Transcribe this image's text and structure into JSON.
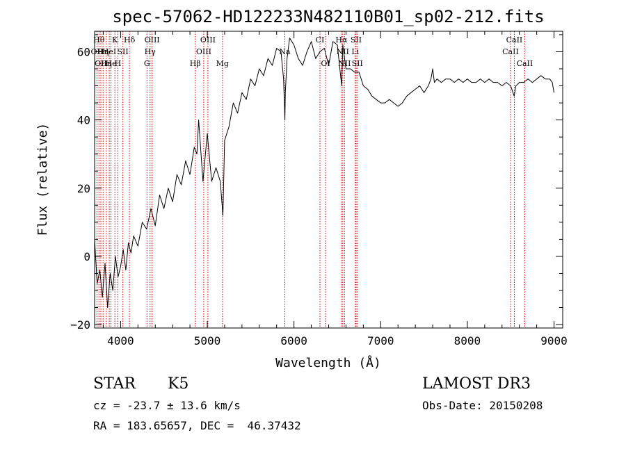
{
  "chart_data": {
    "type": "line",
    "title": "spec-57062-HD122233N482110B01_sp02-212.fits",
    "xlabel": "Wavelength (Å)",
    "ylabel": "Flux (relative)",
    "xlim": [
      3700,
      9100
    ],
    "ylim": [
      -21,
      66
    ],
    "xticks": [
      4000,
      5000,
      6000,
      7000,
      8000,
      9000
    ],
    "yticks": [
      -20,
      0,
      20,
      40,
      60
    ],
    "grid": false,
    "series": [
      {
        "x": [
          3700,
          3730,
          3760,
          3790,
          3820,
          3850,
          3880,
          3910,
          3940,
          3970,
          4000,
          4030,
          4060,
          4090,
          4120,
          4150,
          4200,
          4250,
          4300,
          4350,
          4400,
          4450,
          4500,
          4550,
          4600,
          4650,
          4700,
          4750,
          4800,
          4850,
          4880,
          4900,
          4950,
          5000,
          5050,
          5100,
          5150,
          5180,
          5200,
          5250,
          5300,
          5350,
          5400,
          5450,
          5500,
          5550,
          5600,
          5650,
          5700,
          5750,
          5800,
          5850,
          5880,
          5895,
          5900,
          5920,
          5950,
          6000,
          6050,
          6100,
          6150,
          6200,
          6250,
          6300,
          6350,
          6400,
          6450,
          6500,
          6550,
          6563,
          6600,
          6650,
          6700,
          6750,
          6800,
          6850,
          6900,
          6950,
          7000,
          7050,
          7100,
          7150,
          7200,
          7250,
          7300,
          7350,
          7400,
          7450,
          7500,
          7550,
          7580,
          7600,
          7620,
          7650,
          7700,
          7750,
          7800,
          7850,
          7900,
          7950,
          8000,
          8050,
          8100,
          8150,
          8200,
          8250,
          8300,
          8350,
          8400,
          8450,
          8500,
          8540,
          8560,
          8600,
          8650,
          8700,
          8750,
          8800,
          8850,
          8900,
          8950,
          8980,
          9000
        ],
        "y": [
          5,
          -8,
          -4,
          -12,
          -2,
          -15,
          -5,
          -10,
          0,
          -6,
          -3,
          2,
          -4,
          4,
          1,
          6,
          3,
          10,
          8,
          14,
          9,
          18,
          14,
          20,
          16,
          24,
          21,
          28,
          24,
          32,
          30,
          40,
          22,
          36,
          22,
          26,
          22,
          12,
          34,
          38,
          45,
          42,
          48,
          46,
          52,
          50,
          55,
          53,
          58,
          56,
          61,
          60,
          52,
          40,
          48,
          58,
          64,
          62,
          58,
          56,
          60,
          63,
          58,
          60,
          61,
          56,
          63,
          62,
          50,
          62,
          55,
          55,
          54,
          54,
          50,
          49,
          47,
          46,
          45,
          45,
          46,
          45,
          44,
          45,
          47,
          48,
          49,
          50,
          48,
          50,
          52,
          55,
          51,
          52,
          51,
          52,
          52,
          51,
          52,
          51,
          52,
          51,
          51,
          52,
          51,
          52,
          51,
          51,
          50,
          51,
          50,
          47,
          50,
          51,
          51,
          52,
          51,
          52,
          53,
          52,
          52,
          51,
          48
        ]
      }
    ],
    "lines": [
      {
        "wave": 3727,
        "label": "OII",
        "row": 2
      },
      {
        "wave": 3750,
        "label": "Hθ",
        "row": 1
      },
      {
        "wave": 3772,
        "label": "OII",
        "row": 3
      },
      {
        "wave": 3798,
        "label": "Hη",
        "row": 2
      },
      {
        "wave": 3835,
        "label": "Hη",
        "row": 3
      },
      {
        "wave": 3869,
        "label": "HeI",
        "row": 2
      },
      {
        "wave": 3889,
        "label": "He",
        "row": 3
      },
      {
        "wave": 3934,
        "label": "K",
        "row": 1
      },
      {
        "wave": 3968,
        "label": "H",
        "row": 3
      },
      {
        "wave": 4026,
        "label": "SII",
        "row": 2
      },
      {
        "wave": 4102,
        "label": "Hδ",
        "row": 1
      },
      {
        "wave": 4304,
        "label": "G",
        "row": 3
      },
      {
        "wave": 4340,
        "label": "Hγ",
        "row": 2
      },
      {
        "wave": 4363,
        "label": "OIII",
        "row": 1
      },
      {
        "wave": 4861,
        "label": "Hβ",
        "row": 3
      },
      {
        "wave": 4959,
        "label": "OIII",
        "row": 2
      },
      {
        "wave": 5007,
        "label": "OIII",
        "row": 1
      },
      {
        "wave": 5175,
        "label": "Mg",
        "row": 3
      },
      {
        "wave": 5893,
        "label": "Na",
        "row": 2
      },
      {
        "wave": 6300,
        "label": "CI",
        "row": 1
      },
      {
        "wave": 6364,
        "label": "OI",
        "row": 3
      },
      {
        "wave": 6548,
        "label": "Hα",
        "row": 1
      },
      {
        "wave": 6563,
        "label": "NII",
        "row": 2
      },
      {
        "wave": 6583,
        "label": "NII",
        "row": 3
      },
      {
        "wave": 6707,
        "label": "Li",
        "row": 2
      },
      {
        "wave": 6717,
        "label": "SII",
        "row": 1
      },
      {
        "wave": 6731,
        "label": "SII",
        "row": 3
      },
      {
        "wave": 8498,
        "label": "CaII",
        "row": 2
      },
      {
        "wave": 8542,
        "label": "CaII",
        "row": 1
      },
      {
        "wave": 8662,
        "label": "CaII",
        "row": 3
      }
    ]
  },
  "info": {
    "object_class": "STAR",
    "subclass": "K5",
    "survey": "LAMOST DR3",
    "cz": "cz = -23.7 ± 13.6 km/s",
    "obs_date": "Obs-Date: 20150208",
    "coords": "RA = 183.65657, DEC =  46.37432"
  },
  "colors": {
    "spectrum": "#000000",
    "line_markers": "#cc0000",
    "axes": "#000000"
  }
}
